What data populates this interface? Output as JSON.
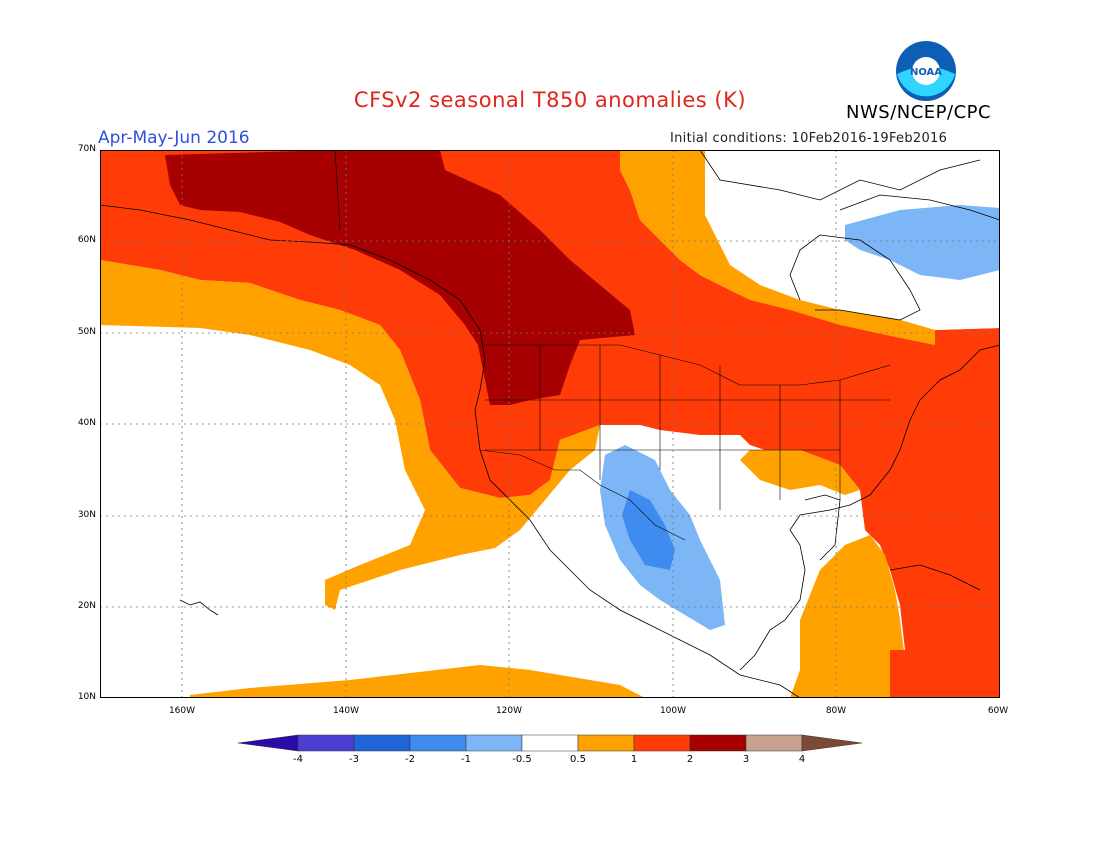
{
  "header": {
    "title": "CFSv2 seasonal T850 anomalies (K)",
    "season": "Apr-May-Jun 2016",
    "initial_conditions": "Initial conditions: 10Feb2016-19Feb2016",
    "agency": "NWS/NCEP/CPC",
    "logo_text": "NOAA"
  },
  "axes": {
    "lat_labels": [
      "70N",
      "60N",
      "50N",
      "40N",
      "30N",
      "20N",
      "10N"
    ],
    "lon_labels": [
      "160W",
      "140W",
      "120W",
      "100W",
      "80W",
      "60W"
    ]
  },
  "colorbar": {
    "labels": [
      "-4",
      "-3",
      "-2",
      "-1",
      "-0.5",
      "0.5",
      "1",
      "2",
      "3",
      "4"
    ],
    "colors": [
      "#2a0aa8",
      "#4a3fd0",
      "#2265d9",
      "#3e8cf0",
      "#7db6f6",
      "#ffffff",
      "#ffa200",
      "#ff3c08",
      "#a60000",
      "#c8a190",
      "#7a4a36"
    ]
  }
}
